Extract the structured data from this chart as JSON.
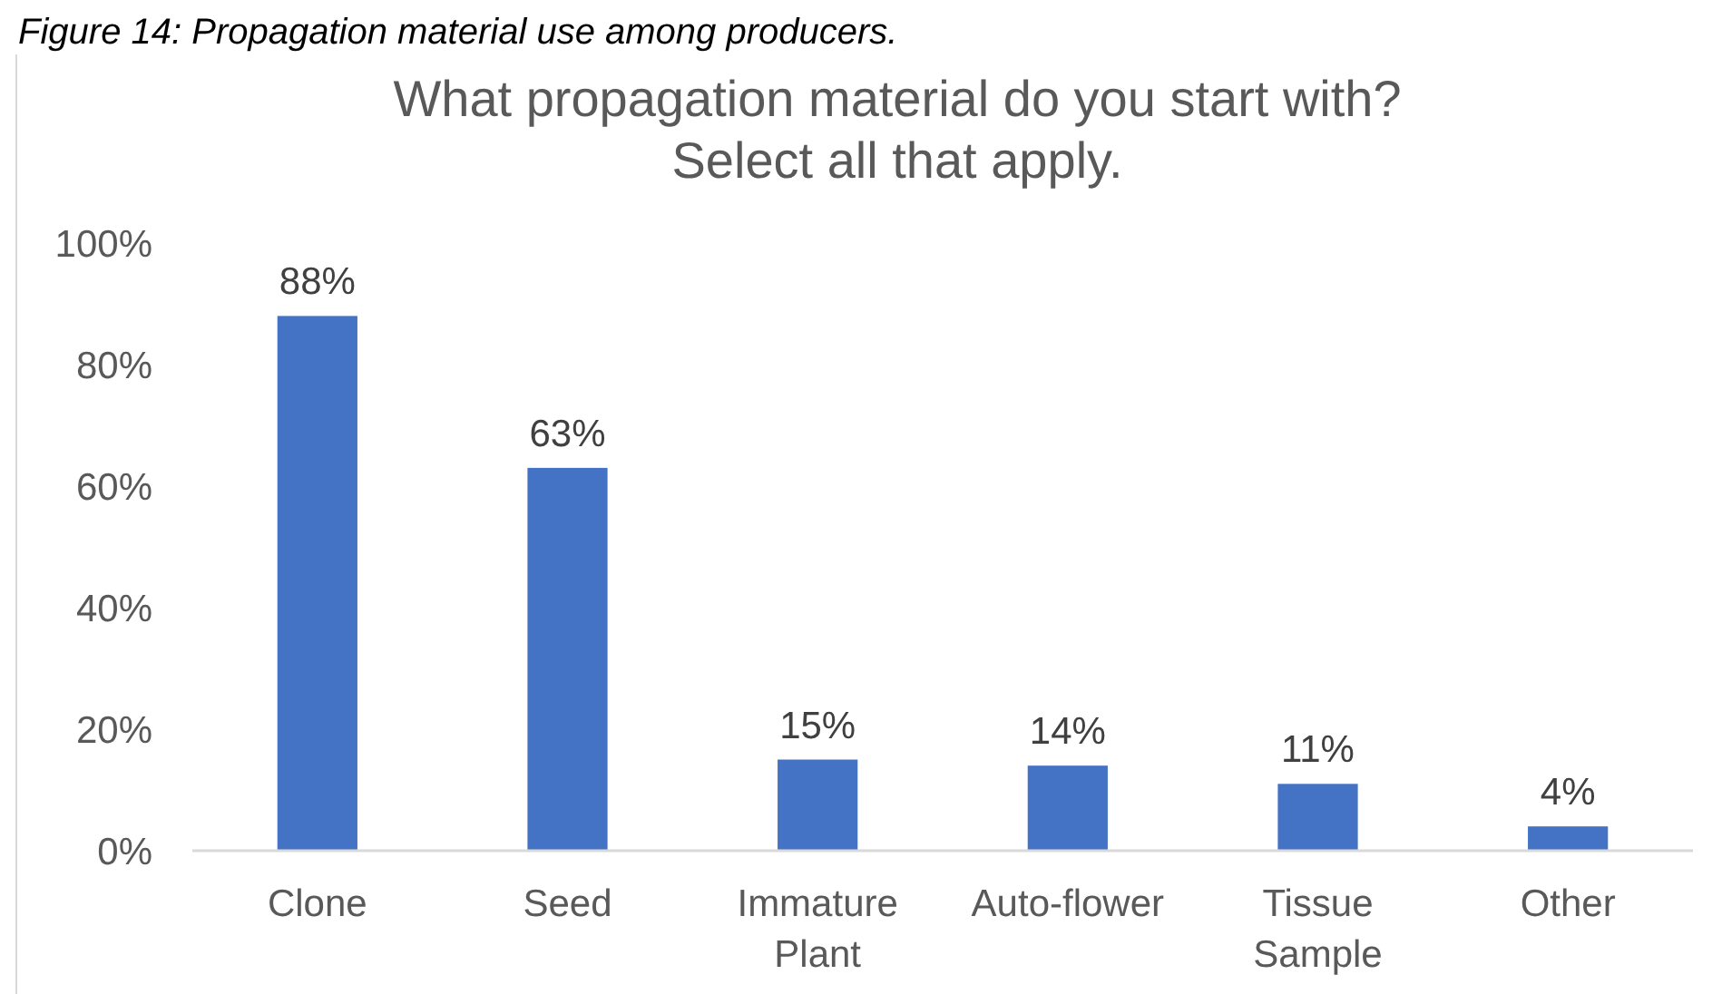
{
  "chart_data": {
    "type": "bar",
    "title": "What propagation material do you start with? Select all that apply.",
    "annotations": [
      "Figure 14: Propagation material use among producers."
    ],
    "categories": [
      "Clone",
      "Seed",
      "Immature Plant",
      "Auto-flower",
      "Tissue Sample",
      "Other"
    ],
    "values": [
      88,
      63,
      15,
      14,
      11,
      4
    ],
    "value_labels": [
      "88%",
      "63%",
      "15%",
      "14%",
      "11%",
      "4%"
    ],
    "color": "#4472c4",
    "ylim": [
      0,
      100
    ],
    "yticks": [
      {
        "value": 0,
        "label": "0%"
      },
      {
        "value": 20,
        "label": "20%"
      },
      {
        "value": 40,
        "label": "40%"
      },
      {
        "value": 60,
        "label": "60%"
      },
      {
        "value": 80,
        "label": "80%"
      },
      {
        "value": 100,
        "label": "100%"
      }
    ]
  }
}
